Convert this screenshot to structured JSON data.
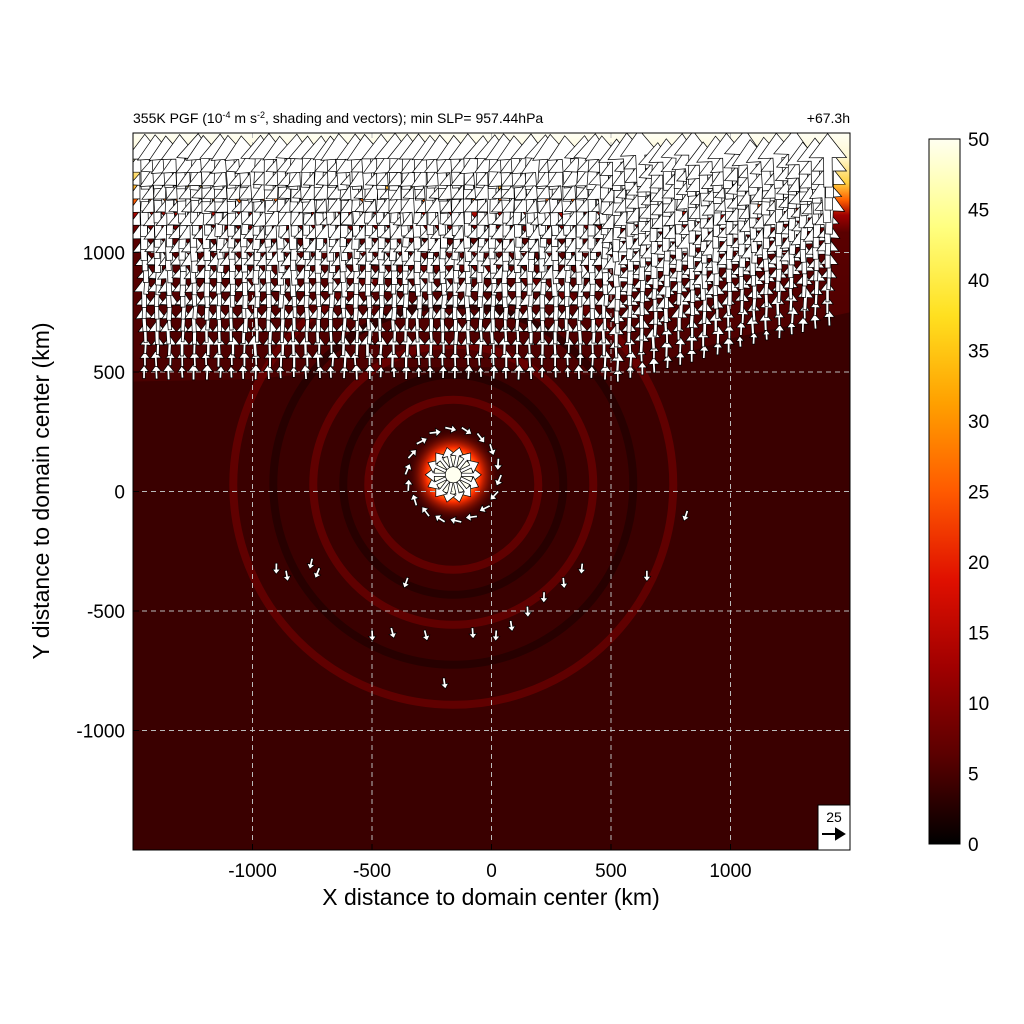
{
  "chart_data": {
    "type": "heatmap",
    "title_main": "355K PGF (10",
    "title_exp": "-4",
    "title_mid": " m s",
    "title_exp2": "-2",
    "title_rest": ", shading and vectors); min SLP= 957.44hPa",
    "forecast_time": "+67.3h",
    "xlabel": "X distance to domain center (km)",
    "ylabel": "Y distance to domain center (km)",
    "xlim": [
      -1500,
      1500
    ],
    "ylim": [
      -1500,
      1500
    ],
    "x_ticks": [
      {
        "value": -1000,
        "label": "-1000"
      },
      {
        "value": -500,
        "label": "-500"
      },
      {
        "value": 0,
        "label": "0"
      },
      {
        "value": 500,
        "label": "500"
      },
      {
        "value": 1000,
        "label": "1000"
      }
    ],
    "y_ticks": [
      {
        "value": 1000,
        "label": "1000"
      },
      {
        "value": 500,
        "label": "500"
      },
      {
        "value": 0,
        "label": "0"
      },
      {
        "value": -500,
        "label": "-500"
      },
      {
        "value": -1000,
        "label": "-1000"
      }
    ],
    "grid": true,
    "colorbar": {
      "min": 0,
      "max": 50,
      "ticks": [
        {
          "value": 0,
          "label": "0"
        },
        {
          "value": 5,
          "label": "5"
        },
        {
          "value": 10,
          "label": "10"
        },
        {
          "value": 15,
          "label": "15"
        },
        {
          "value": 20,
          "label": "20"
        },
        {
          "value": 25,
          "label": "25"
        },
        {
          "value": 30,
          "label": "30"
        },
        {
          "value": 35,
          "label": "35"
        },
        {
          "value": 40,
          "label": "40"
        },
        {
          "value": 45,
          "label": "45"
        },
        {
          "value": 50,
          "label": "50"
        }
      ],
      "colors": [
        "#000000",
        "#5a0000",
        "#a00000",
        "#e01000",
        "#ff5a00",
        "#ffa000",
        "#ffe020",
        "#ffff80",
        "#fffff0"
      ]
    },
    "reference_vector": {
      "value": 25,
      "label": "25"
    },
    "cyclone_center": {
      "x": -160,
      "y": 70
    },
    "min_slp_hPa": 957.44
  }
}
